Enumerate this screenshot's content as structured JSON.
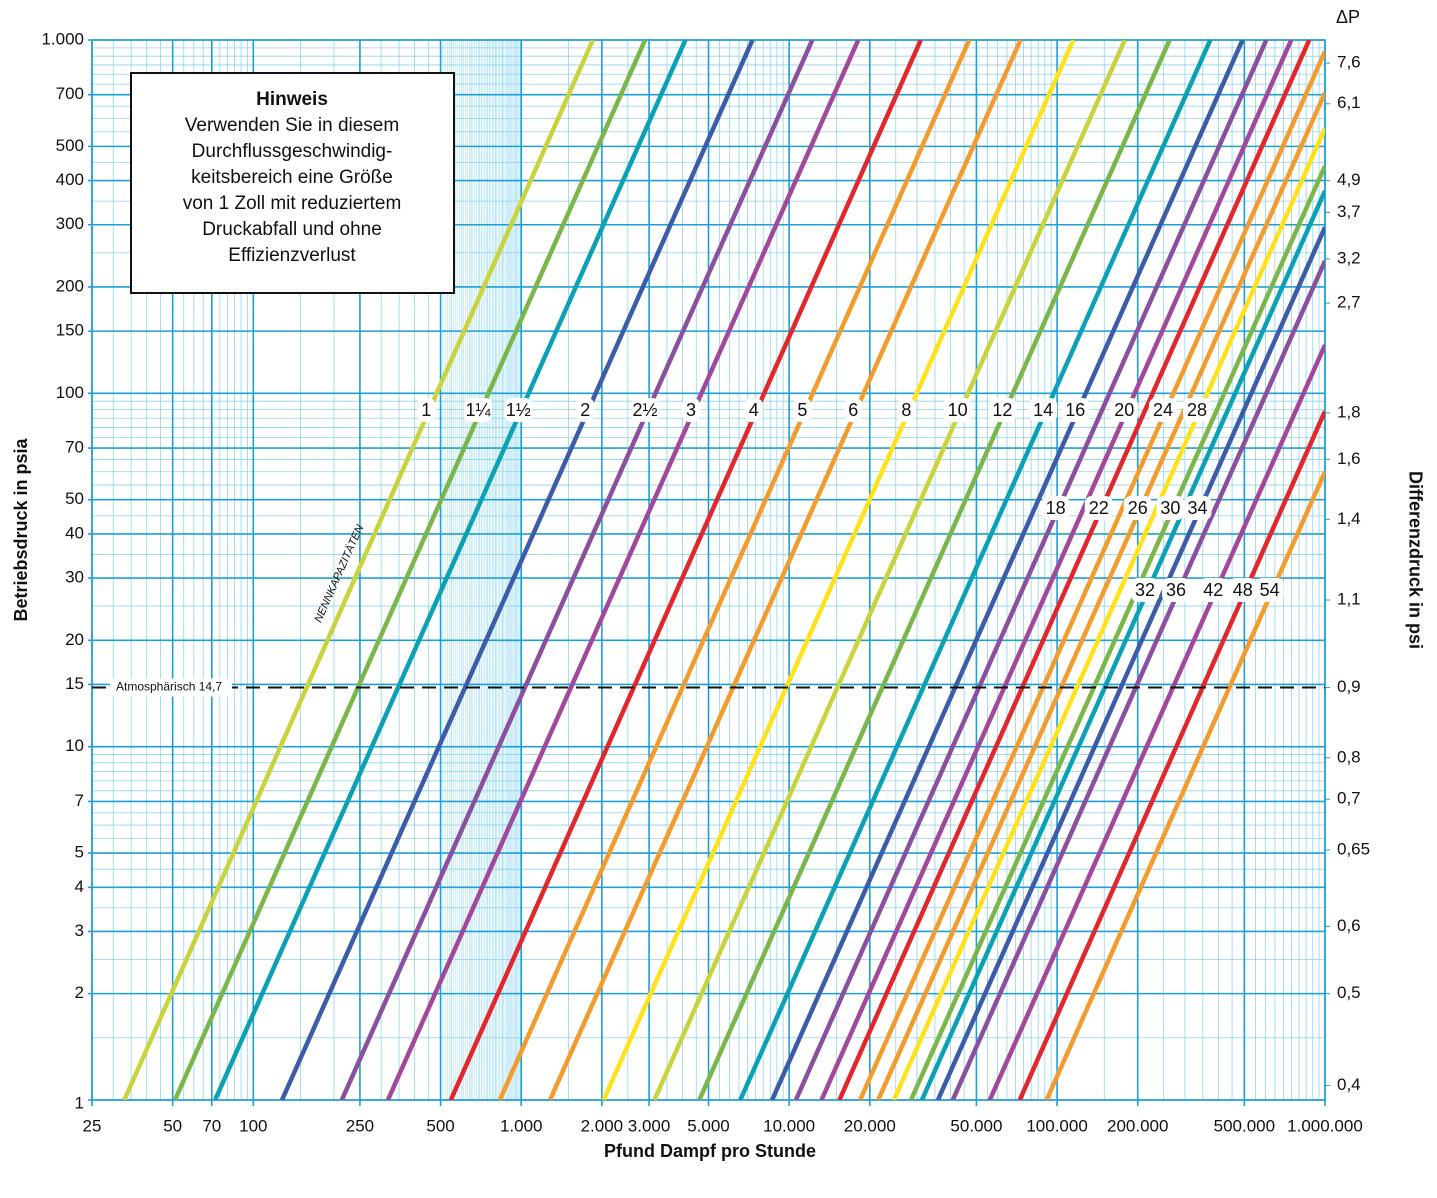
{
  "chart_data": {
    "type": "line",
    "x_scale": "log",
    "y_scale": "log",
    "xlabel": "Pfund Dampf pro Stunde",
    "ylabel": "Betriebsdruck in psia",
    "y2label": "Differenzdruck in psi",
    "y2title": "ΔP",
    "annotation": "NENNKAPAZITÄTEN",
    "note": {
      "title": "Hinweis",
      "lines": [
        "Verwenden Sie in diesem",
        "Durchflussgeschwindig-",
        "keitsbereich eine Größe",
        "von 1 Zoll mit reduziertem",
        "Druckabfall und ohne",
        "Effizienzverlust"
      ]
    },
    "reference_line": {
      "value": 14.7,
      "label": "Atmosphärisch 14,7"
    },
    "grid": true,
    "xlim": [
      25,
      1000000
    ],
    "ylim": [
      1,
      1000
    ],
    "xticks": [
      25,
      50,
      70,
      100,
      250,
      500,
      {
        "value": 1000,
        "label": "1.000"
      },
      {
        "value": 2000,
        "label": "2.000"
      },
      {
        "value": 3000,
        "label": "3.000"
      },
      {
        "value": 5000,
        "label": "5.000"
      },
      {
        "value": 10000,
        "label": "10.000"
      },
      {
        "value": 20000,
        "label": "20.000"
      },
      {
        "value": 50000,
        "label": "50.000"
      },
      {
        "value": 100000,
        "label": "100.000"
      },
      {
        "value": 200000,
        "label": "200.000"
      },
      {
        "value": 500000,
        "label": "500.000"
      },
      {
        "value": 1000000,
        "label": "1.000.000"
      }
    ],
    "yticks": [
      1,
      2,
      3,
      4,
      5,
      7,
      10,
      15,
      20,
      30,
      40,
      50,
      70,
      100,
      150,
      200,
      300,
      400,
      500,
      700,
      {
        "value": 1000,
        "label": "1.000"
      }
    ],
    "y2ticks": [
      {
        "value": 7.6,
        "label": "7,6",
        "psia": 860
      },
      {
        "value": 6.1,
        "label": "6,1",
        "psia": 660
      },
      {
        "value": 4.9,
        "label": "4,9",
        "psia": 400
      },
      {
        "value": 3.7,
        "label": "3,7",
        "psia": 325
      },
      {
        "value": 3.2,
        "label": "3,2",
        "psia": 240
      },
      {
        "value": 2.7,
        "label": "2,7",
        "psia": 180
      },
      {
        "value": 1.8,
        "label": "1,8",
        "psia": 88
      },
      {
        "value": 1.6,
        "label": "1,6",
        "psia": 65
      },
      {
        "value": 1.4,
        "label": "1,4",
        "psia": 44
      },
      {
        "value": 1.1,
        "label": "1,1",
        "psia": 26
      },
      {
        "value": 0.9,
        "label": "0,9",
        "psia": 14.7
      },
      {
        "value": 0.8,
        "label": "0,8",
        "psia": 9.3
      },
      {
        "value": 0.7,
        "label": "0,7",
        "psia": 7.1
      },
      {
        "value": 0.65,
        "label": "0,65",
        "psia": 5.1
      },
      {
        "value": 0.6,
        "label": "0,6",
        "psia": 3.1
      },
      {
        "value": 0.5,
        "label": "0,5",
        "psia": 2.0
      },
      {
        "value": 0.4,
        "label": "0,4",
        "psia": 1.1
      }
    ],
    "series": [
      {
        "name": "1",
        "color": "#c9d33b",
        "x": [
          33,
          1850
        ],
        "values": [
          1,
          1000
        ]
      },
      {
        "name": "1¼",
        "color": "#7ab648",
        "x": [
          51,
          2900
        ],
        "values": [
          1,
          1000
        ]
      },
      {
        "name": "1½",
        "color": "#0aa0b5",
        "x": [
          72,
          4100
        ],
        "values": [
          1,
          1000
        ]
      },
      {
        "name": "2",
        "color": "#3c5ba8",
        "x": [
          128,
          7300
        ],
        "values": [
          1,
          1000
        ]
      },
      {
        "name": "2½",
        "color": "#8a4f9e",
        "x": [
          214,
          12200
        ],
        "values": [
          1,
          1000
        ]
      },
      {
        "name": "3",
        "color": "#a2489c",
        "x": [
          318,
          18100
        ],
        "values": [
          1,
          1000
        ]
      },
      {
        "name": "4",
        "color": "#e3262b",
        "x": [
          546,
          31000
        ],
        "values": [
          1,
          1000
        ]
      },
      {
        "name": "5",
        "color": "#f49b2e",
        "x": [
          832,
          47000
        ],
        "values": [
          1,
          1000
        ]
      },
      {
        "name": "6",
        "color": "#f49b2e",
        "x": [
          1280,
          73000
        ],
        "values": [
          1,
          1000
        ]
      },
      {
        "name": "8",
        "color": "#ffe21a",
        "x": [
          2030,
          115000
        ],
        "values": [
          1,
          1000
        ]
      },
      {
        "name": "10",
        "color": "#c9d33b",
        "x": [
          3140,
          179000
        ],
        "values": [
          1,
          1000
        ]
      },
      {
        "name": "12",
        "color": "#7ab648",
        "x": [
          4620,
          263000
        ],
        "values": [
          1,
          1000
        ]
      },
      {
        "name": "14",
        "color": "#0aa0b5",
        "x": [
          6570,
          373000
        ],
        "values": [
          1,
          1000
        ]
      },
      {
        "name": "16",
        "color": "#3c5ba8",
        "x": [
          8640,
          492000
        ],
        "values": [
          1,
          1000
        ]
      },
      {
        "name": "18",
        "color": "#8a4f9e",
        "x": [
          10600,
          604000
        ],
        "values": [
          1,
          1000
        ]
      },
      {
        "name": "20",
        "color": "#a2489c",
        "x": [
          13200,
          748000
        ],
        "values": [
          1,
          1000
        ]
      },
      {
        "name": "22",
        "color": "#e3262b",
        "x": [
          15400,
          873000
        ],
        "values": [
          1,
          1000
        ]
      },
      {
        "name": "24",
        "color": "#f49b2e",
        "x": [
          18400,
          1000000
        ],
        "values": [
          1,
          929
        ]
      },
      {
        "name": "26",
        "color": "#f49b2e",
        "x": [
          21500,
          1000000
        ],
        "values": [
          1,
          710
        ]
      },
      {
        "name": "28",
        "color": "#ffe21a",
        "x": [
          24600,
          1000000
        ],
        "values": [
          1,
          562
        ]
      },
      {
        "name": "30",
        "color": "#7ab648",
        "x": [
          28500,
          1000000
        ],
        "values": [
          1,
          440
        ]
      },
      {
        "name": "32",
        "color": "#0aa0b5",
        "x": [
          31300,
          1000000
        ],
        "values": [
          1,
          374
        ]
      },
      {
        "name": "34",
        "color": "#3c5ba8",
        "x": [
          35900,
          1000000
        ],
        "values": [
          1,
          295
        ]
      },
      {
        "name": "36",
        "color": "#8a4f9e",
        "x": [
          40800,
          1000000
        ],
        "values": [
          1,
          237
        ]
      },
      {
        "name": "42",
        "color": "#a2489c",
        "x": [
          56100,
          1000000
        ],
        "values": [
          1,
          137
        ]
      },
      {
        "name": "48",
        "color": "#e3262b",
        "x": [
          72500,
          1000000
        ],
        "values": [
          1,
          89
        ]
      },
      {
        "name": "54",
        "color": "#f49b2e",
        "x": [
          91400,
          1000000
        ],
        "values": [
          1,
          60
        ]
      }
    ]
  }
}
